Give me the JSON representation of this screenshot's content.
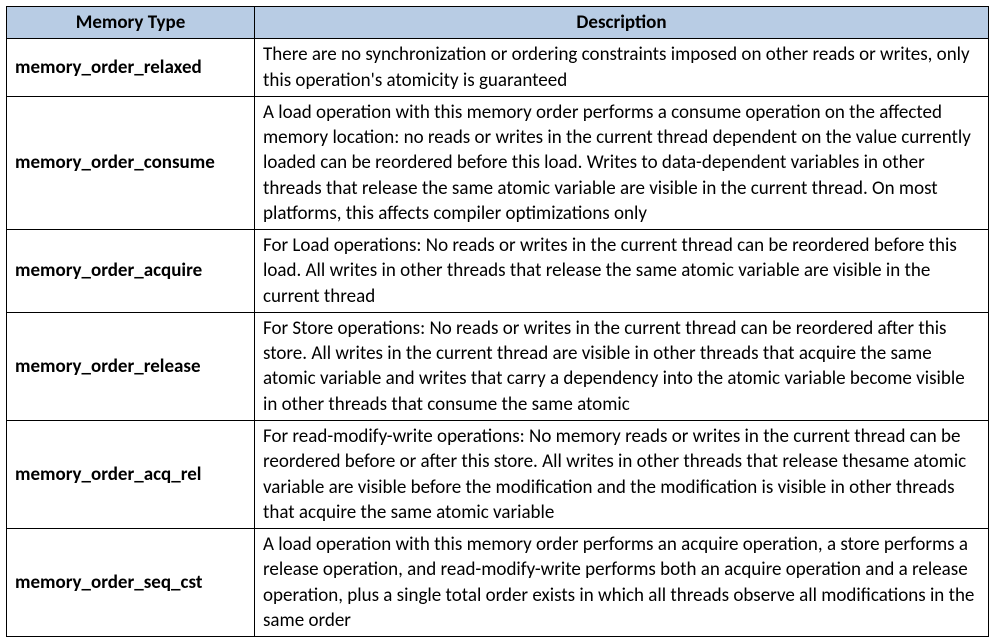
{
  "table": {
    "header_bg": "#b8cce4",
    "border_color": "#000000",
    "columns": [
      {
        "label": "Memory Type"
      },
      {
        "label": "Description"
      }
    ],
    "rows": [
      {
        "type": "memory_order_relaxed",
        "description": "There are no synchronization or ordering constraints imposed on other reads or writes, only this operation's atomicity is guaranteed"
      },
      {
        "type": "memory_order_consume",
        "description": "A load operation with this memory order performs a consume operation on the affected memory location: no reads or writes in the current thread dependent on the value currently loaded can be reordered before this load. Writes to data-dependent variables in other threads that release the same atomic variable are visible in the current thread. On most platforms, this affects compiler optimizations only"
      },
      {
        "type": "memory_order_acquire",
        "description": "For Load operations: No reads or writes in the current thread can be reordered before this load. All writes in other threads that release the same atomic variable are visible in the current thread"
      },
      {
        "type": "memory_order_release",
        "description": "For Store operations: No reads or writes in the current thread can be reordered after this store. All writes in the current thread are visible in other threads that acquire the same atomic variable and writes that carry a dependency into the atomic variable become visible in other threads that consume the same atomic"
      },
      {
        "type": "memory_order_acq_rel",
        "description": "For read-modify-write operations: No memory reads or writes in the current thread can be reordered before or after this store. All writes in other threads that release thesame atomic variable are visible before the modification and the modification is visible in other threads that acquire the same atomic variable"
      },
      {
        "type": "memory_order_seq_cst",
        "description": "A load operation with this memory order performs an acquire operation, a store performs a release operation, and read-modify-write performs both an acquire operation and a release operation, plus a single total order exists in which all threads observe all modifications in the same order"
      }
    ]
  }
}
